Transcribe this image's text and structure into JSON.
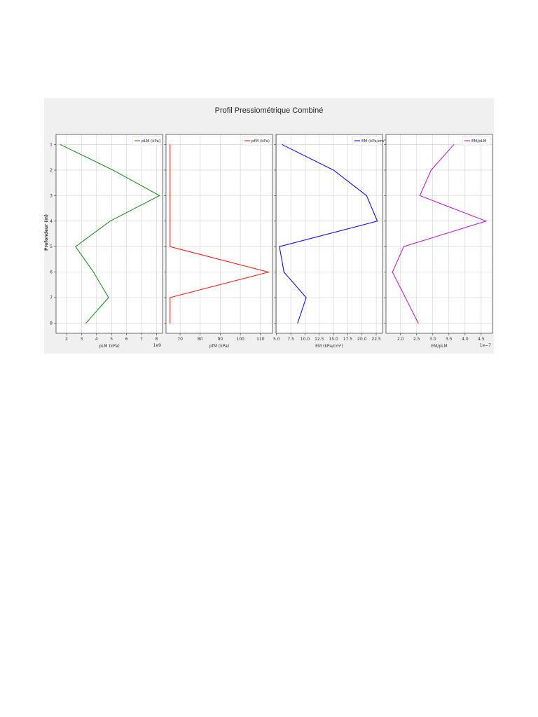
{
  "chart_data": {
    "title": "Profil Pressiométrique Combiné",
    "type": "line",
    "ylabel": "Profondeur (m)",
    "y_ticks": [
      1,
      2,
      3,
      4,
      5,
      6,
      7,
      8
    ],
    "y_inverted": true,
    "ylim": [
      0.6,
      8.4
    ],
    "grid": true,
    "legend_position": "top-right",
    "panels": [
      {
        "xlabel": "pLM (kPa)",
        "x_offset_text": "1e9",
        "xlim": [
          1.3,
          8.4
        ],
        "x_ticks": [
          "2",
          "3",
          "4",
          "5",
          "6",
          "7",
          "8"
        ],
        "x_tick_values": [
          2,
          3,
          4,
          5,
          6,
          7,
          8
        ],
        "series": [
          {
            "name": "pLM (kPa)",
            "color": "#228b22",
            "points": [
              {
                "x": 1.6,
                "y": 1
              },
              {
                "x": 5.1,
                "y": 2
              },
              {
                "x": 8.2,
                "y": 3
              },
              {
                "x": 4.9,
                "y": 4
              },
              {
                "x": 2.6,
                "y": 5
              },
              {
                "x": 3.8,
                "y": 6
              },
              {
                "x": 4.8,
                "y": 7
              },
              {
                "x": 3.3,
                "y": 8
              }
            ]
          }
        ]
      },
      {
        "xlabel": "pfM (kPa)",
        "x_offset_text": "",
        "xlim": [
          63,
          116
        ],
        "x_ticks": [
          "70",
          "80",
          "90",
          "100",
          "110"
        ],
        "x_tick_values": [
          70,
          80,
          90,
          100,
          110
        ],
        "series": [
          {
            "name": "pfM (kPa)",
            "color": "#ff2020",
            "points": [
              {
                "x": 65,
                "y": 1
              },
              {
                "x": 65,
                "y": 2
              },
              {
                "x": 65,
                "y": 3
              },
              {
                "x": 65,
                "y": 4
              },
              {
                "x": 65,
                "y": 5
              },
              {
                "x": 114,
                "y": 6
              },
              {
                "x": 65,
                "y": 7
              },
              {
                "x": 65,
                "y": 8
              }
            ]
          }
        ]
      },
      {
        "xlabel": "EM (kPa/cm²)",
        "x_offset_text": "",
        "xlim": [
          4.9,
          23.6
        ],
        "x_ticks": [
          "5.0",
          "7.5",
          "10.0",
          "12.5",
          "15.0",
          "17.5",
          "20.0",
          "22.5"
        ],
        "x_tick_values": [
          5.0,
          7.5,
          10.0,
          12.5,
          15.0,
          17.5,
          20.0,
          22.5
        ],
        "series": [
          {
            "name": "EM (kPa/cm²)",
            "color": "#1010ee",
            "points": [
              {
                "x": 6.0,
                "y": 1
              },
              {
                "x": 15.0,
                "y": 2
              },
              {
                "x": 20.8,
                "y": 3
              },
              {
                "x": 22.7,
                "y": 4
              },
              {
                "x": 5.5,
                "y": 5
              },
              {
                "x": 6.3,
                "y": 6
              },
              {
                "x": 10.2,
                "y": 7
              },
              {
                "x": 8.7,
                "y": 8
              }
            ]
          }
        ]
      },
      {
        "xlabel": "EM/pLM",
        "x_offset_text": "1e−7",
        "xlim": [
          1.55,
          4.85
        ],
        "x_ticks": [
          "2.0",
          "2.5",
          "3.0",
          "3.5",
          "4.0",
          "4.5"
        ],
        "x_tick_values": [
          2.0,
          2.5,
          3.0,
          3.5,
          4.0,
          4.5
        ],
        "series": [
          {
            "name": "EM/pLM",
            "color": "#c020c8",
            "points": [
              {
                "x": 3.65,
                "y": 1
              },
              {
                "x": 2.95,
                "y": 2
              },
              {
                "x": 2.6,
                "y": 3
              },
              {
                "x": 4.65,
                "y": 4
              },
              {
                "x": 2.1,
                "y": 5
              },
              {
                "x": 1.75,
                "y": 6
              },
              {
                "x": 2.15,
                "y": 7
              },
              {
                "x": 2.55,
                "y": 8
              }
            ]
          }
        ]
      }
    ]
  }
}
